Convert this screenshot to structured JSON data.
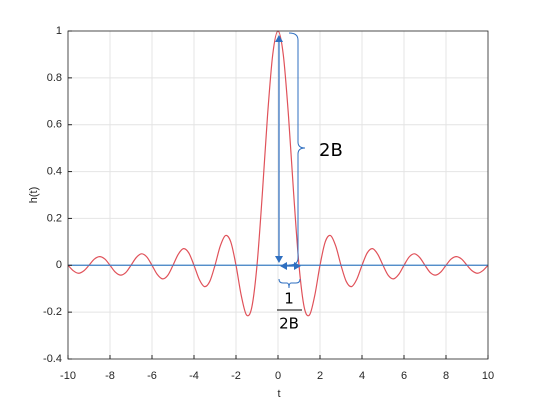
{
  "chart_data": {
    "type": "line",
    "xlabel": "t",
    "ylabel": "h(t)",
    "xlim": [
      -10,
      10
    ],
    "ylim": [
      -0.4,
      1
    ],
    "xticks": [
      -10,
      -8,
      -6,
      -4,
      -2,
      0,
      2,
      4,
      6,
      8,
      10
    ],
    "yticks": [
      -0.4,
      -0.2,
      0,
      0.2,
      0.4,
      0.6,
      0.8,
      1
    ],
    "grid": true,
    "annotations": [
      "2B",
      "1",
      "2B"
    ],
    "series": [
      {
        "color": "#e0525a",
        "x": [
          -10,
          -9.75,
          -9.5,
          -9.25,
          -9,
          -8.75,
          -8.5,
          -8.25,
          -8,
          -7.75,
          -7.5,
          -7.25,
          -7,
          -6.75,
          -6.5,
          -6.25,
          -6,
          -5.75,
          -5.5,
          -5.25,
          -5,
          -4.75,
          -4.5,
          -4.25,
          -4,
          -3.75,
          -3.5,
          -3.25,
          -3,
          -2.75,
          -2.5,
          -2.25,
          -2,
          -1.75,
          -1.5,
          -1.25,
          -1,
          -0.75,
          -0.5,
          -0.25,
          0,
          0.25,
          0.5,
          0.75,
          1,
          1.25,
          1.5,
          1.75,
          2,
          2.25,
          2.5,
          2.75,
          3,
          3.25,
          3.5,
          3.75,
          4,
          4.25,
          4.5,
          4.75,
          5,
          5.25,
          5.5,
          5.75,
          6,
          6.25,
          6.5,
          6.75,
          7,
          7.25,
          7.5,
          7.75,
          8,
          8.25,
          8.5,
          8.75,
          9,
          9.25,
          9.5,
          9.75,
          10
        ],
        "values": [
          0,
          -0.023,
          -0.034,
          -0.024,
          0,
          0.026,
          0.037,
          0.027,
          0,
          -0.029,
          -0.042,
          -0.031,
          0,
          0.033,
          0.049,
          0.036,
          0,
          -0.039,
          -0.058,
          -0.043,
          0,
          0.047,
          0.071,
          0.053,
          0,
          -0.06,
          -0.091,
          -0.069,
          0,
          0.082,
          0.127,
          0.1,
          0,
          -0.129,
          -0.212,
          -0.18,
          0,
          0.3,
          0.637,
          0.9,
          1,
          0.9,
          0.637,
          0.3,
          0,
          -0.18,
          -0.212,
          -0.129,
          0,
          0.1,
          0.127,
          0.082,
          0,
          -0.069,
          -0.091,
          -0.06,
          0,
          0.053,
          0.071,
          0.047,
          0,
          -0.043,
          -0.058,
          -0.039,
          0,
          0.036,
          0.049,
          0.033,
          0,
          -0.031,
          -0.042,
          -0.029,
          0,
          0.027,
          0.037,
          0.026,
          0,
          -0.024,
          -0.034,
          -0.023,
          0
        ]
      },
      {
        "color": "#3d7fc4",
        "x": [
          -10,
          10
        ],
        "values": [
          0,
          0
        ]
      }
    ]
  }
}
